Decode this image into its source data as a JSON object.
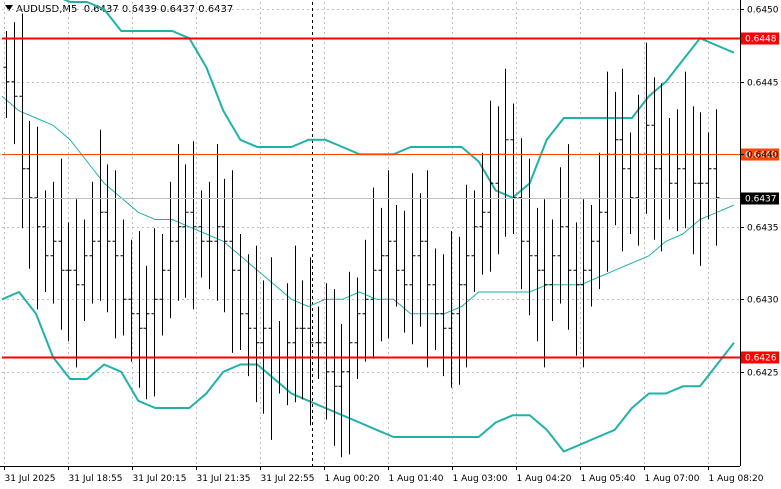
{
  "header": {
    "symbol_label": "AUDUSD,M5",
    "ohlc_text": "0.6437 0.6439 0.6437 0.6437"
  },
  "chart_data": {
    "type": "candlestick",
    "symbol": "AUDUSD",
    "timeframe": "M5",
    "ylim": [
      0.64185,
      0.64505
    ],
    "grid": true,
    "y_ticks": [
      "0.6450",
      "0.6445",
      "0.6440",
      "0.6435",
      "0.6430",
      "0.6425"
    ],
    "y_tick_values": [
      0.645,
      0.6445,
      0.644,
      0.6435,
      0.643,
      0.6425
    ],
    "x_ticks": [
      "31 Jul 2025",
      "31 Jul 18:55",
      "31 Jul 20:15",
      "31 Jul 21:35",
      "31 Jul 22:55",
      "1 Aug 00:20",
      "1 Aug 01:40",
      "1 Aug 03:00",
      "1 Aug 04:20",
      "1 Aug 05:40",
      "1 Aug 07:00",
      "1 Aug 08:20"
    ],
    "horizontal_levels": [
      {
        "value": 0.6448,
        "label": "0.6448",
        "color": "#ff0000"
      },
      {
        "value": 0.644,
        "label": "0.6440",
        "color": "#ff4500"
      },
      {
        "value": 0.6426,
        "label": "0.6426",
        "color": "#ff0000"
      }
    ],
    "current_price": {
      "value": 0.6437,
      "label": "0.6437"
    },
    "session_separator_x_label": "1 Aug 00:00",
    "colors": {
      "candles": "#000000",
      "bollinger": "#20b2aa",
      "moving_average": "#20b2aa",
      "grid": "#c0c0c0",
      "level": "#ff0000"
    },
    "price_path": [
      0.6445,
      0.6444,
      0.6439,
      0.6437,
      0.6435,
      0.6433,
      0.6434,
      0.6432,
      0.6432,
      0.6431,
      0.6433,
      0.6434,
      0.6436,
      0.6434,
      0.6433,
      0.643,
      0.6429,
      0.6428,
      0.6429,
      0.643,
      0.6432,
      0.6434,
      0.6435,
      0.6436,
      0.6435,
      0.6434,
      0.6434,
      0.6435,
      0.6434,
      0.6432,
      0.6429,
      0.6428,
      0.6427,
      0.6428,
      0.6426,
      0.6426,
      0.6427,
      0.6428,
      0.6428,
      0.6427,
      0.6427,
      0.6425,
      0.6424,
      0.6425,
      0.6427,
      0.6429,
      0.643,
      0.6432,
      0.6433,
      0.6434,
      0.6432,
      0.6431,
      0.6433,
      0.6434,
      0.6431,
      0.6429,
      0.6428,
      0.6429,
      0.6431,
      0.6433,
      0.6435,
      0.6436,
      0.6438,
      0.644,
      0.6441,
      0.6437,
      0.6434,
      0.6433,
      0.6432,
      0.6431,
      0.6433,
      0.6435,
      0.6432,
      0.6431,
      0.6432,
      0.6434,
      0.6436,
      0.644,
      0.6441,
      0.6439,
      0.6437,
      0.644,
      0.6442,
      0.6439,
      0.644,
      0.6438,
      0.6439,
      0.644,
      0.6438,
      0.6438,
      0.6439,
      0.6437
    ],
    "upper_band": [
      0.6451,
      0.6451,
      0.6451,
      0.6451,
      0.64505,
      0.64505,
      0.645,
      0.64485,
      0.64485,
      0.64485,
      0.64485,
      0.6448,
      0.6446,
      0.6443,
      0.6441,
      0.64405,
      0.64405,
      0.64405,
      0.6441,
      0.6441,
      0.64405,
      0.644,
      0.644,
      0.644,
      0.64405,
      0.64405,
      0.64405,
      0.64405,
      0.64395,
      0.64375,
      0.6437,
      0.6438,
      0.6441,
      0.64425,
      0.64425,
      0.64425,
      0.64425,
      0.64425,
      0.6444,
      0.6445,
      0.64465,
      0.6448,
      0.64475,
      0.6447
    ],
    "lower_band": [
      0.643,
      0.64305,
      0.6429,
      0.6426,
      0.64245,
      0.64245,
      0.64255,
      0.6425,
      0.6423,
      0.64225,
      0.64225,
      0.64225,
      0.64235,
      0.6425,
      0.64255,
      0.64255,
      0.64245,
      0.64235,
      0.6423,
      0.64225,
      0.6422,
      0.64215,
      0.6421,
      0.64205,
      0.64205,
      0.64205,
      0.64205,
      0.64205,
      0.64205,
      0.64215,
      0.6422,
      0.6422,
      0.6421,
      0.64195,
      0.642,
      0.64205,
      0.6421,
      0.64225,
      0.64235,
      0.64235,
      0.6424,
      0.6424,
      0.64255,
      0.6427
    ],
    "moving_average": [
      0.6444,
      0.6443,
      0.64425,
      0.6442,
      0.6441,
      0.64395,
      0.6438,
      0.6437,
      0.6436,
      0.64355,
      0.64355,
      0.6435,
      0.64345,
      0.6434,
      0.6433,
      0.6432,
      0.6431,
      0.643,
      0.64295,
      0.643,
      0.643,
      0.64305,
      0.643,
      0.643,
      0.6429,
      0.6429,
      0.6429,
      0.64295,
      0.64305,
      0.64305,
      0.64305,
      0.64305,
      0.6431,
      0.6431,
      0.6431,
      0.64315,
      0.6432,
      0.64325,
      0.6433,
      0.6434,
      0.64345,
      0.64355,
      0.6436,
      0.64365
    ]
  }
}
